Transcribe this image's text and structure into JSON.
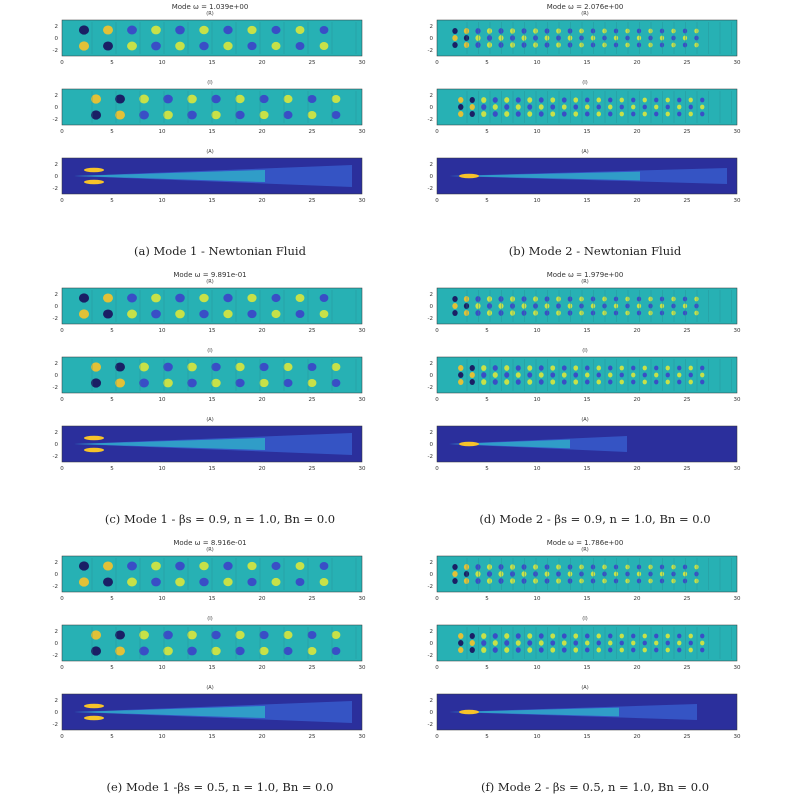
{
  "panels": [
    {
      "mode_title": "Mode ω = 1.039e+00",
      "caption": "(a) Mode 1 - Newtonian Fluid",
      "subplot_titles": [
        "(R)",
        "(I)",
        "(A)"
      ]
    },
    {
      "mode_title": "Mode ω = 2.076e+00",
      "caption": "(b) Mode 2 - Newtonian Fluid",
      "subplot_titles": [
        "(R)",
        "(I)",
        "(A)"
      ]
    },
    {
      "mode_title": "Mode ω = 9.891e-01",
      "caption": "(c) Mode 1 - βs = 0.9, n = 1.0, Bn = 0.0",
      "subplot_titles": [
        "(R)",
        "(I)",
        "(A)"
      ]
    },
    {
      "mode_title": "Mode ω = 1.979e+00",
      "caption": "(d) Mode 2 - βs = 0.9, n = 1.0, Bn = 0.0",
      "subplot_titles": [
        "(R)",
        "(I)",
        "(A)"
      ]
    },
    {
      "mode_title": "Mode ω = 8.916e-01",
      "caption": "(e) Mode 1 -βs = 0.5, n = 1.0, Bn = 0.0",
      "subplot_titles": [
        "(R)",
        "(I)",
        "(A)"
      ]
    },
    {
      "mode_title": "Mode ω = 1.786e+00",
      "caption": "(f) Mode 2 - βs = 0.5, n = 1.0, Bn = 0.0",
      "subplot_titles": [
        "(R)",
        "(I)",
        "(A)"
      ]
    }
  ],
  "axes": {
    "x_ticks": [
      "0",
      "5",
      "10",
      "15",
      "20",
      "25",
      "30"
    ],
    "y_ticks": [
      "2",
      "0",
      "-2"
    ]
  },
  "colors": {
    "field_bg": "#27b1b4",
    "amp_bg": "#2b2f9c",
    "neg": "#3c44c8",
    "pos": "#d9e73c",
    "hot": "#f7c329",
    "deep": "#1a0f5c"
  }
}
